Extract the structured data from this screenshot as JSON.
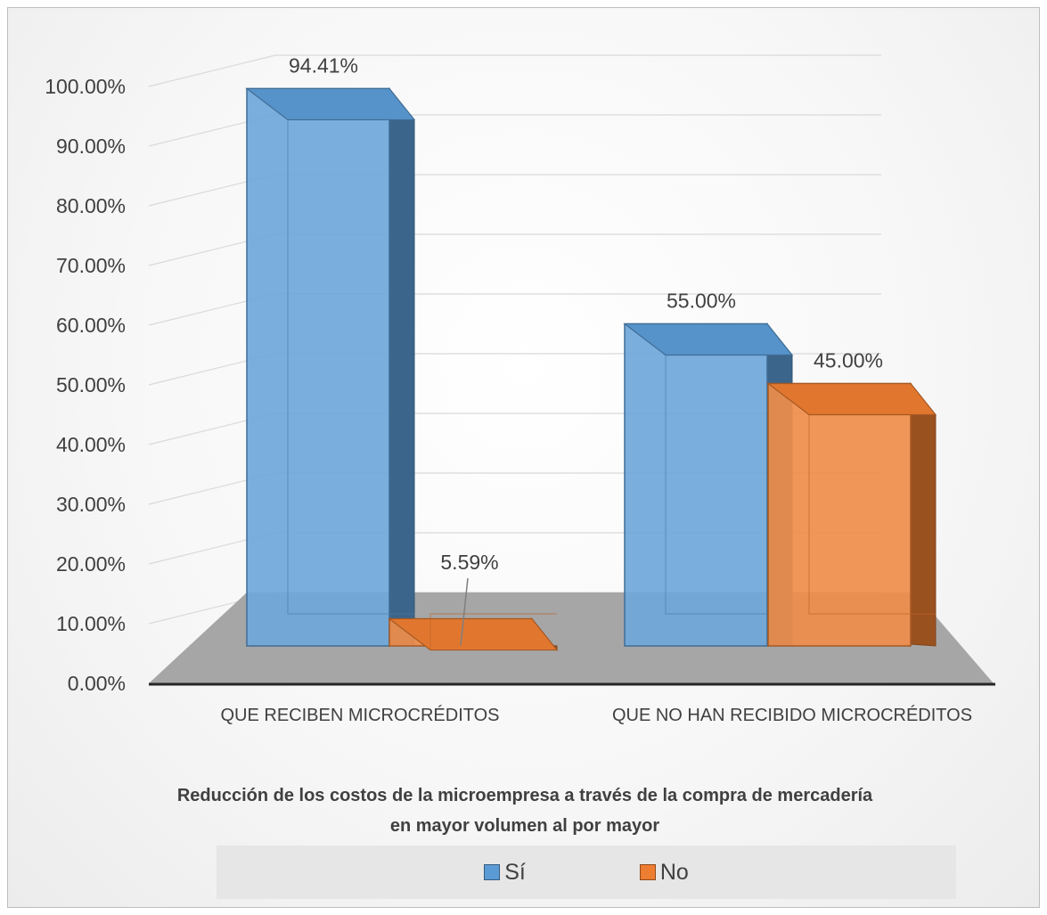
{
  "chart_data": {
    "type": "bar",
    "title": "Reducción de los costos de la microempresa a través de la compra de mercadería en mayor volumen al por mayor",
    "categories": [
      "QUE RECIBEN MICROCRÉDITOS",
      "QUE NO HAN RECIBIDO MICROCRÉDITOS"
    ],
    "series": [
      {
        "name": "Sí",
        "values": [
          94.41,
          55.0
        ],
        "labels": [
          "94.41%",
          "55.00%"
        ],
        "color": "#5b9bd5"
      },
      {
        "name": "No",
        "values": [
          5.59,
          45.0
        ],
        "labels": [
          "5.59%",
          "45.00%"
        ],
        "color": "#ed7d31"
      }
    ],
    "ylim": [
      0,
      100
    ],
    "yticks": [
      "0.00%",
      "10.00%",
      "20.00%",
      "30.00%",
      "40.00%",
      "50.00%",
      "60.00%",
      "70.00%",
      "80.00%",
      "90.00%",
      "100.00%"
    ],
    "grid": true,
    "style": "3d-column",
    "legend_position": "bottom"
  }
}
